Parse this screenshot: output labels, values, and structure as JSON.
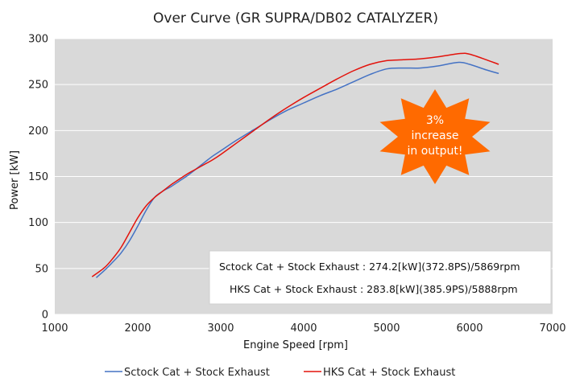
{
  "chart_data": {
    "type": "line",
    "title": "Over Curve (GR SUPRA/DB02 CATALYZER)",
    "xlabel": "Engine Speed [rpm]",
    "ylabel": "Power [kW]",
    "xlim": [
      1000,
      7000
    ],
    "ylim": [
      0,
      300
    ],
    "xticks": [
      1000,
      2000,
      3000,
      4000,
      5000,
      6000,
      7000
    ],
    "yticks": [
      0,
      50,
      100,
      150,
      200,
      250,
      300
    ],
    "grid": "horizontal",
    "legend_position": "bottom",
    "series": [
      {
        "name": "Sctock Cat + Stock Exhaust",
        "color": "#4472c4",
        "x": [
          1500,
          1600,
          1700,
          1800,
          1900,
          2000,
          2100,
          2200,
          2300,
          2400,
          2500,
          2600,
          2700,
          2800,
          2900,
          3000,
          3200,
          3400,
          3600,
          3800,
          4000,
          4200,
          4400,
          4600,
          4800,
          5000,
          5200,
          5400,
          5600,
          5869,
          6000,
          6200,
          6350
        ],
        "y": [
          40,
          48,
          57,
          67,
          80,
          96,
          113,
          127,
          134,
          139,
          145,
          151,
          158,
          165,
          172,
          178,
          190,
          201,
          212,
          222,
          230,
          238,
          245,
          253,
          261,
          267,
          268,
          268,
          270,
          274.2,
          272,
          266,
          262
        ]
      },
      {
        "name": "HKS Cat + Stock Exhaust",
        "color": "#e3120b",
        "x": [
          1450,
          1600,
          1700,
          1800,
          1900,
          2000,
          2100,
          2200,
          2300,
          2400,
          2500,
          2600,
          2700,
          2800,
          2900,
          3000,
          3200,
          3400,
          3600,
          3800,
          4000,
          4200,
          4400,
          4600,
          4800,
          5000,
          5200,
          5400,
          5600,
          5888,
          6000,
          6200,
          6350
        ],
        "y": [
          41,
          51,
          61,
          73,
          89,
          105,
          118,
          127,
          134,
          141,
          147,
          153,
          158,
          163,
          168,
          174,
          187,
          200,
          213,
          225,
          236,
          246,
          256,
          265,
          272,
          276,
          277,
          278,
          280,
          283.8,
          283,
          277,
          272
        ]
      }
    ],
    "annotations": {
      "summary_lines": [
        "Sctock Cat + Stock Exhaust : 274.2[kW](372.8PS)/5869rpm",
        "HKS Cat + Stock Exhaust : 283.8[kW](385.9PS)/5888rpm"
      ],
      "badge_lines": [
        "3%",
        "increase",
        "in output!"
      ],
      "badge_color": "#ff6a00"
    }
  }
}
